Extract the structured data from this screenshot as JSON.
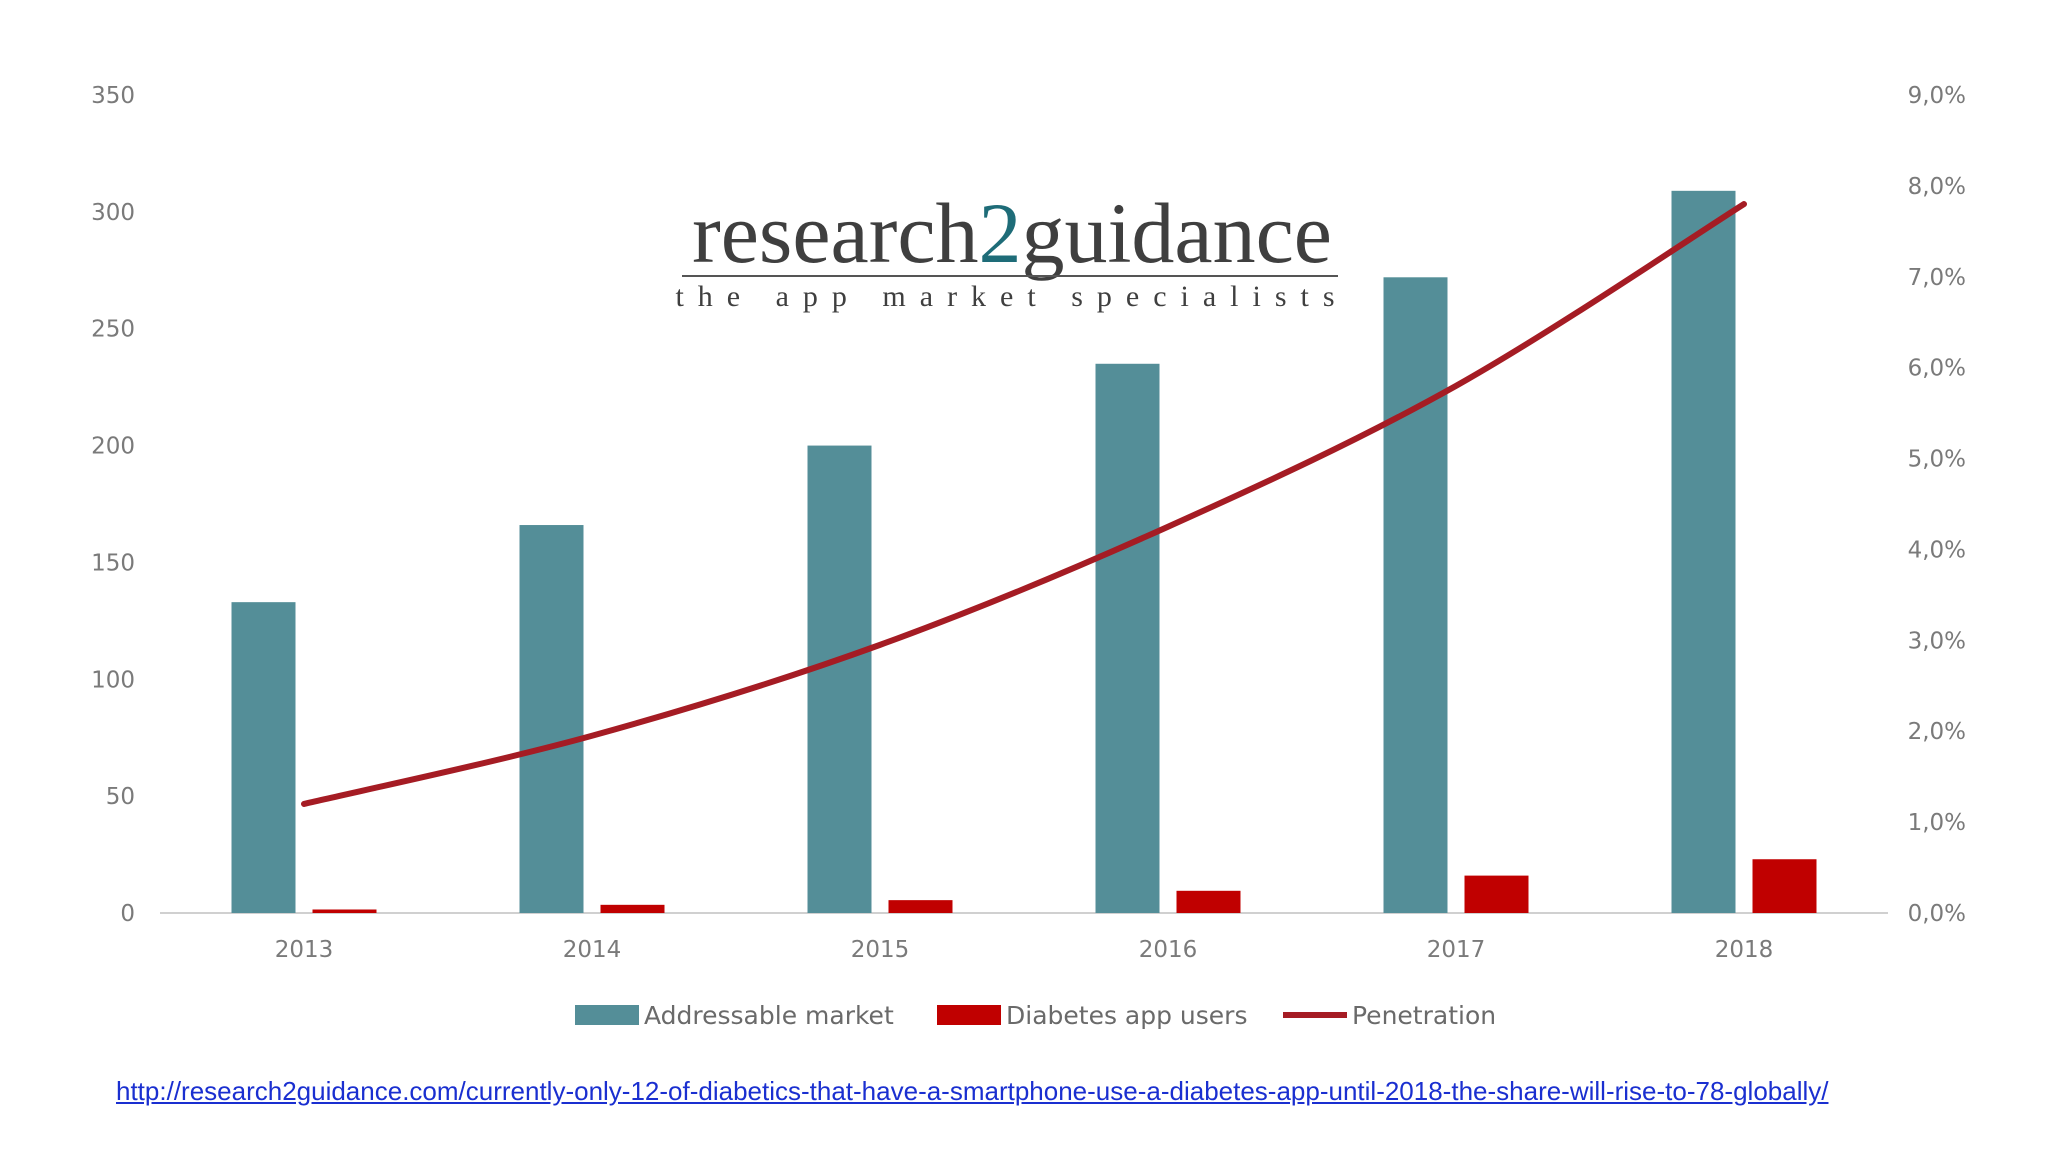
{
  "logo": {
    "main_left": "research",
    "main_digit": "2",
    "main_right": "guidance",
    "tagline": "the app market specialists"
  },
  "source_url": "http://research2guidance.com/currently-only-12-of-diabetics-that-have-a-smartphone-use-a-diabetes-app-until-2018-the-share-will-rise-to-78-globally/",
  "colors": {
    "addressable": "#548e98",
    "users": "#c00000",
    "penetration": "#a51c24",
    "axis": "#d0d0d0"
  },
  "chart_data": {
    "type": "bar",
    "title": "",
    "categories": [
      "2013",
      "2014",
      "2015",
      "2016",
      "2017",
      "2018"
    ],
    "ylim": [
      0,
      350
    ],
    "y2lim": [
      0,
      9
    ],
    "yticks": [
      "0",
      "50",
      "100",
      "150",
      "200",
      "250",
      "300",
      "350"
    ],
    "y2ticks": [
      "0,0%",
      "1,0%",
      "2,0%",
      "3,0%",
      "4,0%",
      "5,0%",
      "6,0%",
      "7,0%",
      "8,0%",
      "9,0%"
    ],
    "grid": false,
    "legend_position": "bottom",
    "series": [
      {
        "name": "Addressable market",
        "type": "bar",
        "axis": "left",
        "values": [
          133,
          166,
          200,
          235,
          272,
          309
        ]
      },
      {
        "name": "Diabetes app users",
        "type": "bar",
        "axis": "left",
        "values": [
          1.5,
          3.5,
          5.5,
          9.5,
          16,
          23
        ]
      },
      {
        "name": "Penetration",
        "type": "line",
        "axis": "right",
        "values": [
          1.2,
          1.95,
          2.95,
          4.25,
          5.8,
          7.8
        ]
      }
    ]
  }
}
